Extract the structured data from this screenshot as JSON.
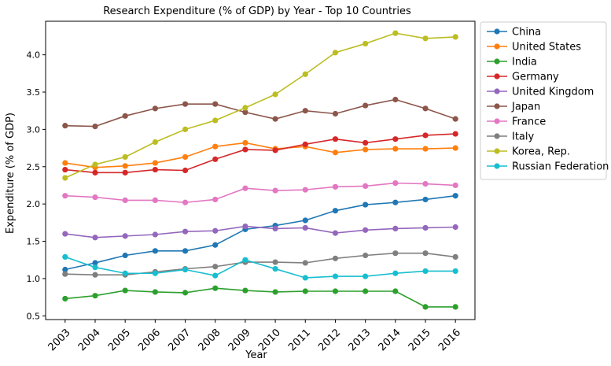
{
  "chart_data": {
    "type": "line",
    "title": "Research Expenditure (% of GDP) by Year - Top 10 Countries",
    "xlabel": "Year",
    "ylabel": "Expenditure (% of GDP)",
    "x": [
      2003,
      2004,
      2005,
      2006,
      2007,
      2008,
      2009,
      2010,
      2011,
      2012,
      2013,
      2014,
      2015,
      2016
    ],
    "xticks": [
      "2003",
      "2004",
      "2005",
      "2006",
      "2007",
      "2008",
      "2009",
      "2010",
      "2011",
      "2012",
      "2013",
      "2014",
      "2015",
      "2016"
    ],
    "ylim": [
      0.45,
      4.45
    ],
    "yticks": [
      0.5,
      1.0,
      1.5,
      2.0,
      2.5,
      3.0,
      3.5,
      4.0
    ],
    "ytick_labels": [
      "0.5",
      "1.0",
      "1.5",
      "2.0",
      "2.5",
      "3.0",
      "3.5",
      "4.0"
    ],
    "grid": false,
    "legend_position": "outside-right",
    "series": [
      {
        "name": "China",
        "color": "#1f77b4",
        "values": [
          1.12,
          1.21,
          1.31,
          1.37,
          1.37,
          1.45,
          1.66,
          1.71,
          1.78,
          1.91,
          1.99,
          2.02,
          2.06,
          2.11
        ]
      },
      {
        "name": "United States",
        "color": "#ff7f0e",
        "values": [
          2.55,
          2.49,
          2.51,
          2.55,
          2.63,
          2.77,
          2.82,
          2.74,
          2.77,
          2.69,
          2.73,
          2.74,
          2.74,
          2.75
        ]
      },
      {
        "name": "India",
        "color": "#2ca02c",
        "values": [
          0.73,
          0.77,
          0.84,
          0.82,
          0.81,
          0.87,
          0.84,
          0.82,
          0.83,
          0.83,
          0.83,
          0.83,
          0.62,
          0.62
        ]
      },
      {
        "name": "Germany",
        "color": "#d62728",
        "values": [
          2.46,
          2.42,
          2.42,
          2.46,
          2.45,
          2.6,
          2.73,
          2.72,
          2.8,
          2.87,
          2.82,
          2.87,
          2.92,
          2.94
        ]
      },
      {
        "name": "United Kingdom",
        "color": "#9467bd",
        "values": [
          1.6,
          1.55,
          1.57,
          1.59,
          1.63,
          1.64,
          1.7,
          1.67,
          1.68,
          1.61,
          1.65,
          1.67,
          1.68,
          1.69
        ]
      },
      {
        "name": "Japan",
        "color": "#8c564b",
        "values": [
          3.05,
          3.04,
          3.18,
          3.28,
          3.34,
          3.34,
          3.23,
          3.14,
          3.25,
          3.21,
          3.32,
          3.4,
          3.28,
          3.14
        ]
      },
      {
        "name": "France",
        "color": "#e377c2",
        "values": [
          2.11,
          2.09,
          2.05,
          2.05,
          2.02,
          2.06,
          2.21,
          2.18,
          2.19,
          2.23,
          2.24,
          2.28,
          2.27,
          2.25
        ]
      },
      {
        "name": "Italy",
        "color": "#7f7f7f",
        "values": [
          1.06,
          1.05,
          1.05,
          1.09,
          1.13,
          1.16,
          1.22,
          1.22,
          1.21,
          1.27,
          1.31,
          1.34,
          1.34,
          1.29
        ]
      },
      {
        "name": "Korea, Rep.",
        "color": "#bcbd22",
        "values": [
          2.35,
          2.53,
          2.63,
          2.83,
          3.0,
          3.12,
          3.29,
          3.47,
          3.74,
          4.03,
          4.15,
          4.29,
          4.22,
          4.24
        ]
      },
      {
        "name": "Russian Federation",
        "color": "#17becf",
        "values": [
          1.29,
          1.15,
          1.07,
          1.07,
          1.12,
          1.04,
          1.25,
          1.13,
          1.01,
          1.03,
          1.03,
          1.07,
          1.1,
          1.1
        ]
      }
    ]
  }
}
